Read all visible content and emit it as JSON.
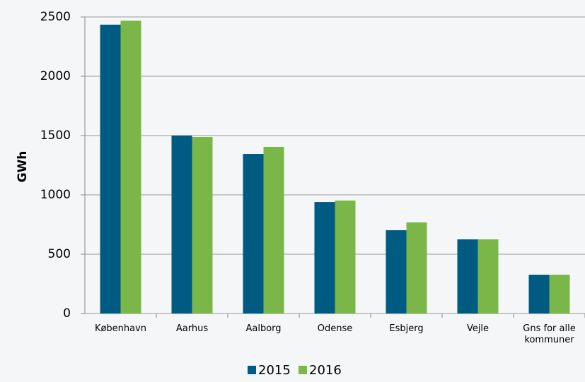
{
  "chart_data": {
    "type": "bar",
    "ylabel": "GWh",
    "categories": [
      "København",
      "Aarhus",
      "Aalborg",
      "Odense",
      "Esbjerg",
      "Vejle",
      "Gns for alle kommuner"
    ],
    "series": [
      {
        "name": "2015",
        "color": "#005b82",
        "values": [
          2435,
          1500,
          1345,
          940,
          702,
          625,
          327
        ]
      },
      {
        "name": "2016",
        "color": "#7ab648",
        "values": [
          2468,
          1488,
          1405,
          952,
          768,
          625,
          327
        ]
      }
    ],
    "ylim": [
      0,
      2500
    ],
    "yticks": [
      0,
      500,
      1000,
      1500,
      2000,
      2500
    ],
    "grid": true,
    "legend": "bottom"
  }
}
